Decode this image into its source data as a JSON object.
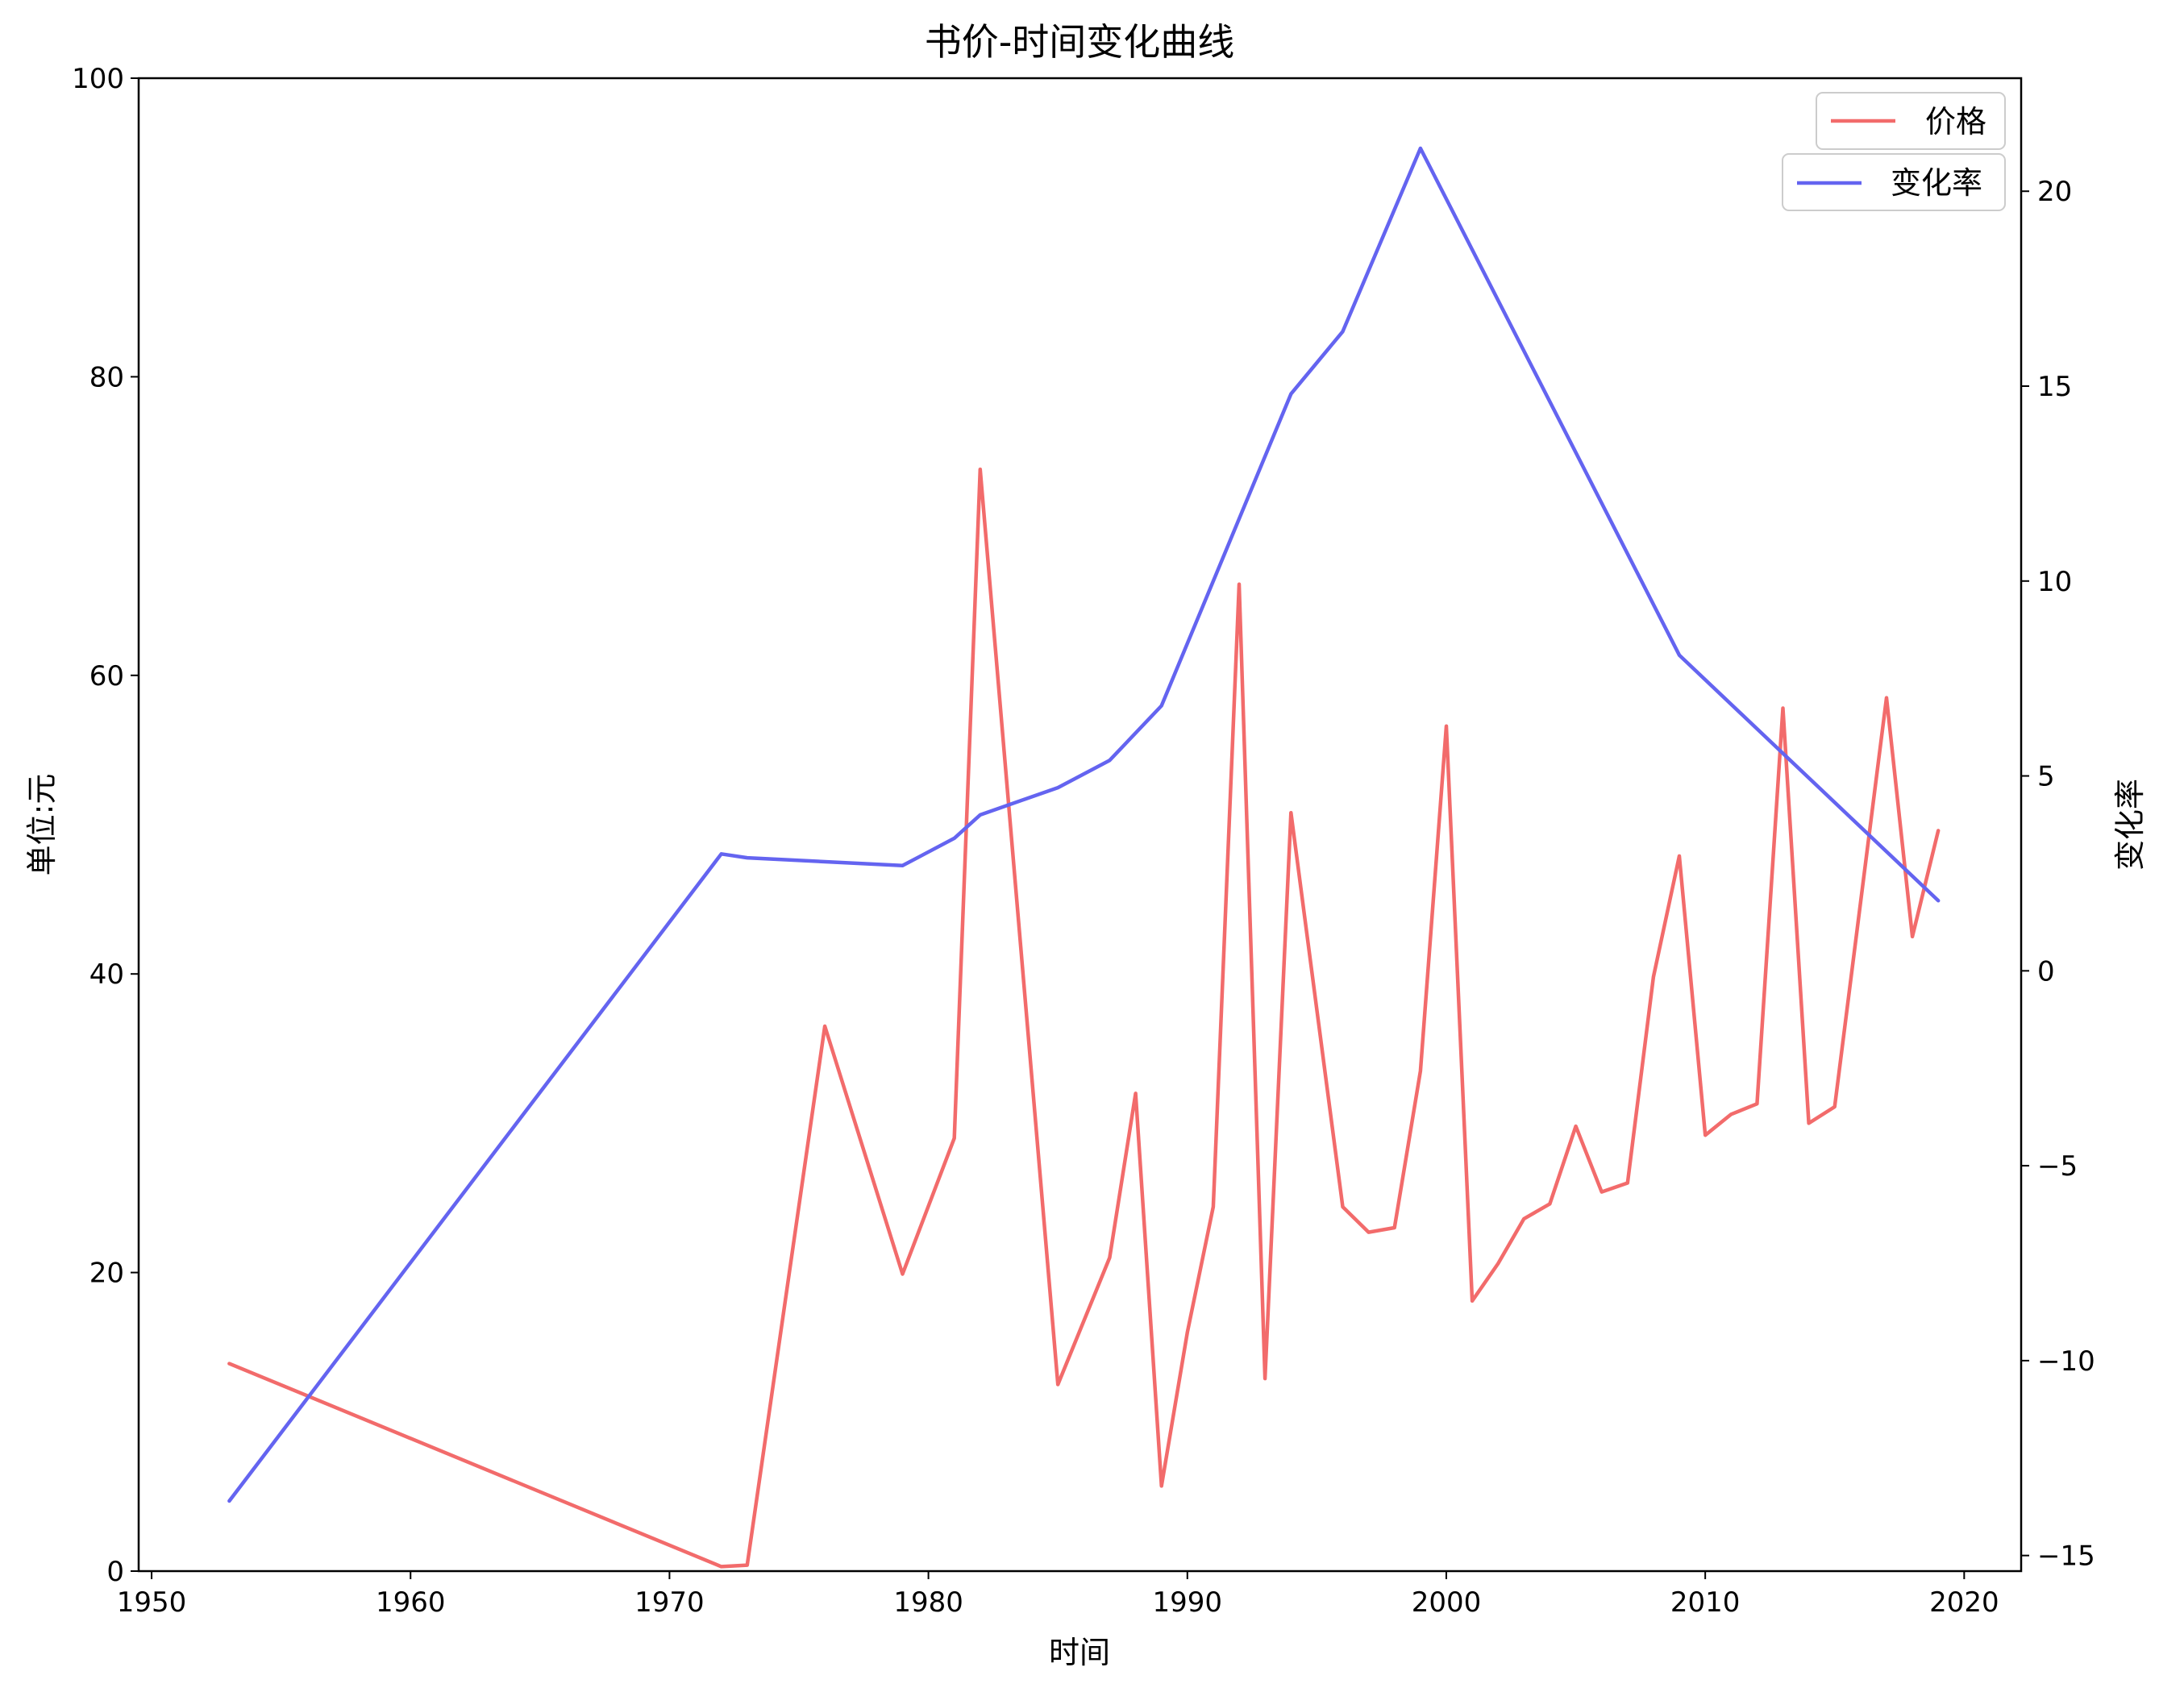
{
  "chart_data": {
    "type": "line",
    "title": "书价-时间变化曲线",
    "xlabel": "时间",
    "ylabel": "单位:元",
    "y2label": "变化率",
    "xlim": [
      1949.5,
      2022.2
    ],
    "ylim": [
      0,
      100
    ],
    "y2lim": [
      -15.4,
      22.9
    ],
    "x_ticks": [
      1950,
      1960,
      1970,
      1980,
      1990,
      2000,
      2010,
      2020
    ],
    "y_ticks": [
      0,
      20,
      40,
      60,
      80,
      100
    ],
    "y2_ticks": [
      -15,
      -10,
      -5,
      0,
      5,
      10,
      15,
      20
    ],
    "grid": false,
    "legend_placement": "top-right",
    "series": [
      {
        "name": "价格",
        "axis": "left",
        "color": "#f26b6b",
        "x": [
          1953,
          1972,
          1973,
          1976,
          1979,
          1981,
          1982,
          1985,
          1987,
          1988,
          1989,
          1990,
          1991,
          1992,
          1993,
          1994,
          1996,
          1997,
          1998,
          1999,
          2000,
          2001,
          2002,
          2003,
          2004,
          2005,
          2006,
          2007,
          2008,
          2009,
          2010,
          2011,
          2012,
          2013,
          2014,
          2015,
          2017,
          2018,
          2019
        ],
        "values": [
          13.9,
          0.3,
          0.4,
          36.5,
          19.9,
          29.0,
          73.8,
          12.5,
          21.0,
          32.0,
          5.7,
          16.0,
          24.4,
          66.1,
          12.9,
          50.8,
          24.4,
          22.7,
          23.0,
          33.5,
          56.6,
          18.1,
          20.6,
          23.6,
          24.6,
          29.8,
          25.4,
          26.0,
          39.8,
          47.9,
          29.2,
          30.6,
          31.3,
          57.8,
          30.0,
          31.1,
          58.5,
          42.5,
          49.6
        ]
      },
      {
        "name": "变化率",
        "axis": "right",
        "color": "#6464f0",
        "x": [
          1953,
          1972,
          1973,
          1979,
          1981,
          1982,
          1985,
          1987,
          1989,
          1994,
          1996,
          1999,
          2009,
          2019
        ],
        "values": [
          -13.6,
          3.0,
          2.9,
          2.7,
          3.4,
          4.0,
          4.7,
          5.4,
          6.8,
          14.8,
          16.4,
          21.1,
          8.1,
          1.8
        ]
      }
    ]
  }
}
